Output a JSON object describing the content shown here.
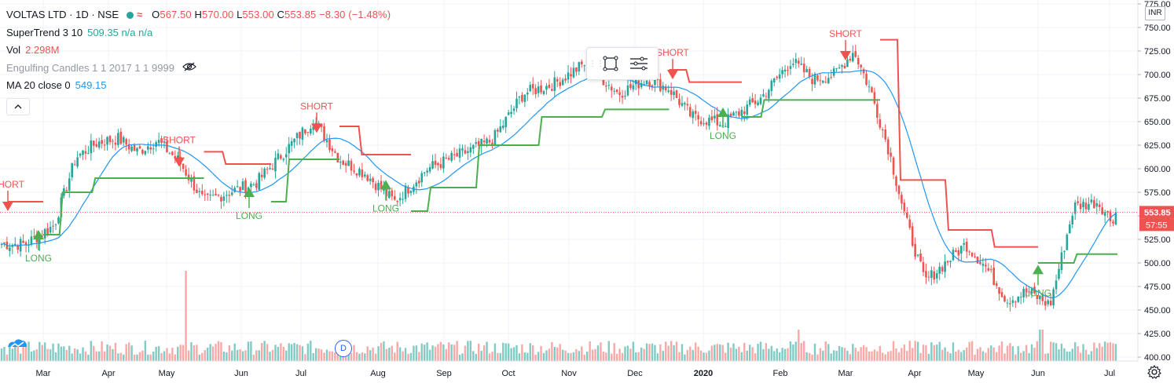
{
  "header": {
    "symbol": "VOLTAS LTD · 1D · NSE",
    "ohlc": {
      "o": "567.50",
      "h": "570.00",
      "l": "553.00",
      "c": "553.85",
      "chg": "−8.30 (−1.48%)"
    }
  },
  "indicators": [
    {
      "label": "SuperTrend 3 10",
      "value": "509.35  n/a  n/a",
      "color": "#26a69a"
    },
    {
      "label": "Vol",
      "value": "2.298M",
      "color": "#ef5350"
    },
    {
      "label": "Engulfing Candles 1 1 2017 1 1 9999",
      "value": "",
      "color": "#9598a1"
    },
    {
      "label": "MA 20 close 0",
      "value": "549.15",
      "color": "#2196f3"
    }
  ],
  "currency": "INR",
  "price_label": "553.85",
  "countdown_label": "57:55",
  "dividend_marker": "D",
  "colors": {
    "up": "#26a69a",
    "down": "#ef5350",
    "ma": "#2196f3",
    "supertrend_up": "#4caf50",
    "supertrend_down": "#ef5350",
    "vol_up": "#80cbc4",
    "vol_down": "#f7a9a7"
  },
  "chart_data": {
    "type": "candlestick",
    "title": "VOLTAS LTD · 1D · NSE",
    "ylim": [
      400,
      775
    ],
    "y_ticks": [
      400,
      425,
      450,
      475,
      500,
      525,
      550,
      575,
      600,
      625,
      650,
      675,
      700,
      725,
      750,
      775
    ],
    "x_labels": [
      "Mar",
      "Apr",
      "May",
      "Jun",
      "Jul",
      "Aug",
      "Sep",
      "Oct",
      "Nov",
      "Dec",
      "2020",
      "Feb",
      "Mar",
      "Apr",
      "May",
      "Jun",
      "Jul"
    ],
    "ma_value": 549.15,
    "last_close": 553.85,
    "close_path": [
      {
        "m": "Feb",
        "p": 520
      },
      {
        "m": "Mar",
        "p": 540
      },
      {
        "m": "Mar",
        "p": 612
      },
      {
        "m": "Mar",
        "p": 628
      },
      {
        "m": "Apr",
        "p": 632
      },
      {
        "m": "Apr",
        "p": 618
      },
      {
        "m": "Apr",
        "p": 630
      },
      {
        "m": "May",
        "p": 608
      },
      {
        "m": "May",
        "p": 565
      },
      {
        "m": "May",
        "p": 575
      },
      {
        "m": "Jun",
        "p": 585
      },
      {
        "m": "Jun",
        "p": 620
      },
      {
        "m": "Jul",
        "p": 652
      },
      {
        "m": "Jul",
        "p": 610
      },
      {
        "m": "Jul",
        "p": 595
      },
      {
        "m": "Aug",
        "p": 565
      },
      {
        "m": "Aug",
        "p": 600
      },
      {
        "m": "Sep",
        "p": 615
      },
      {
        "m": "Sep",
        "p": 630
      },
      {
        "m": "Oct",
        "p": 680
      },
      {
        "m": "Oct",
        "p": 690
      },
      {
        "m": "Nov",
        "p": 712
      },
      {
        "m": "Nov",
        "p": 680
      },
      {
        "m": "Dec",
        "p": 695
      },
      {
        "m": "Dec",
        "p": 685
      },
      {
        "m": "Dec",
        "p": 655
      },
      {
        "m": "2020",
        "p": 648
      },
      {
        "m": "2020",
        "p": 675
      },
      {
        "m": "Feb",
        "p": 715
      },
      {
        "m": "Feb",
        "p": 695
      },
      {
        "m": "Feb",
        "p": 700
      },
      {
        "m": "Mar",
        "p": 725
      },
      {
        "m": "Mar",
        "p": 680
      },
      {
        "m": "Mar",
        "p": 620
      },
      {
        "m": "Mar",
        "p": 545
      },
      {
        "m": "Apr",
        "p": 480
      },
      {
        "m": "Apr",
        "p": 500
      },
      {
        "m": "Apr",
        "p": 520
      },
      {
        "m": "May",
        "p": 495
      },
      {
        "m": "May",
        "p": 460
      },
      {
        "m": "May",
        "p": 470
      },
      {
        "m": "Jun",
        "p": 455
      },
      {
        "m": "Jun",
        "p": 560
      },
      {
        "m": "Jun",
        "p": 565
      },
      {
        "m": "Jul",
        "p": 545
      },
      {
        "m": "Jul",
        "p": 553.85
      }
    ],
    "supertrend": [
      {
        "m": "Feb",
        "p": 565,
        "dir": "down"
      },
      {
        "m": "Mar",
        "p": 530,
        "dir": "up"
      },
      {
        "m": "Mar",
        "p": 575,
        "dir": "up"
      },
      {
        "m": "Apr",
        "p": 590,
        "dir": "up"
      },
      {
        "m": "May",
        "p": 590,
        "dir": "up"
      },
      {
        "m": "May",
        "p": 618,
        "dir": "down"
      },
      {
        "m": "Jun",
        "p": 605,
        "dir": "down"
      },
      {
        "m": "Jun",
        "p": 565,
        "dir": "up"
      },
      {
        "m": "Jul",
        "p": 610,
        "dir": "up"
      },
      {
        "m": "Jul",
        "p": 645,
        "dir": "down"
      },
      {
        "m": "Aug",
        "p": 615,
        "dir": "down"
      },
      {
        "m": "Aug",
        "p": 555,
        "dir": "up"
      },
      {
        "m": "Sep",
        "p": 580,
        "dir": "up"
      },
      {
        "m": "Oct",
        "p": 625,
        "dir": "up"
      },
      {
        "m": "Nov",
        "p": 655,
        "dir": "up"
      },
      {
        "m": "Dec",
        "p": 663,
        "dir": "up"
      },
      {
        "m": "Dec",
        "p": 705,
        "dir": "down"
      },
      {
        "m": "2020",
        "p": 692,
        "dir": "down"
      },
      {
        "m": "2020",
        "p": 655,
        "dir": "up"
      },
      {
        "m": "Feb",
        "p": 673,
        "dir": "up"
      },
      {
        "m": "Mar",
        "p": 673,
        "dir": "up"
      },
      {
        "m": "Mar",
        "p": 737,
        "dir": "down"
      },
      {
        "m": "Apr",
        "p": 588,
        "dir": "down"
      },
      {
        "m": "May",
        "p": 535,
        "dir": "down"
      },
      {
        "m": "May",
        "p": 517,
        "dir": "down"
      },
      {
        "m": "Jun",
        "p": 500,
        "dir": "up"
      },
      {
        "m": "Jul",
        "p": 509.35,
        "dir": "up"
      }
    ],
    "signals": [
      {
        "label": "SHORT",
        "m": "Feb",
        "p": 565
      },
      {
        "label": "LONG",
        "m": "Mar",
        "p": 525
      },
      {
        "label": "SHORT",
        "m": "May",
        "p": 612
      },
      {
        "label": "LONG",
        "m": "Jun",
        "p": 570
      },
      {
        "label": "SHORT",
        "m": "Jul",
        "p": 648
      },
      {
        "label": "LONG",
        "m": "Aug",
        "p": 578
      },
      {
        "label": "SHORT",
        "m": "Dec",
        "p": 705
      },
      {
        "label": "LONG",
        "m": "2020",
        "p": 655
      },
      {
        "label": "SHORT",
        "m": "Mar",
        "p": 725
      },
      {
        "label": "LONG",
        "m": "Jun",
        "p": 488
      }
    ],
    "volume_note": "volume histogram along the bottom; tallest spike in May"
  }
}
